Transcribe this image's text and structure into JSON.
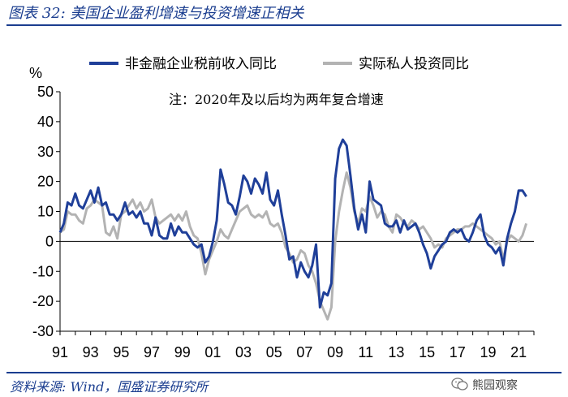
{
  "figure_title": "图表 32: 美国企业盈利增速与投资增速正相关",
  "source": "资料来源: Wind，国盛证券研究所",
  "watermark": "熊园观察",
  "colors": {
    "series1": "#1f3f99",
    "series2": "#b3b3b3",
    "brand": "#1a3d8f"
  },
  "chart_data": {
    "type": "line",
    "y_unit": "%",
    "ylim": [
      -30,
      50
    ],
    "yticks": [
      -30,
      -20,
      -10,
      0,
      10,
      20,
      30,
      40,
      50
    ],
    "xlim": [
      1991,
      2022
    ],
    "xticks": [
      {
        "x": 1991,
        "label": "91"
      },
      {
        "x": 1993,
        "label": "93"
      },
      {
        "x": 1995,
        "label": "95"
      },
      {
        "x": 1997,
        "label": "97"
      },
      {
        "x": 1999,
        "label": "99"
      },
      {
        "x": 2001,
        "label": "01"
      },
      {
        "x": 2003,
        "label": "03"
      },
      {
        "x": 2005,
        "label": "05"
      },
      {
        "x": 2007,
        "label": "07"
      },
      {
        "x": 2009,
        "label": "09"
      },
      {
        "x": 2011,
        "label": "11"
      },
      {
        "x": 2013,
        "label": "13"
      },
      {
        "x": 2015,
        "label": "15"
      },
      {
        "x": 2017,
        "label": "17"
      },
      {
        "x": 2019,
        "label": "19"
      },
      {
        "x": 2021,
        "label": "21"
      }
    ],
    "annotation": "注：2020年及以后均为两年复合增速",
    "legend_position": "top",
    "series": [
      {
        "name": "非金融企业税前收入同比",
        "color": "#1f3f99",
        "points": [
          [
            1991.0,
            3
          ],
          [
            1991.25,
            6
          ],
          [
            1991.5,
            13
          ],
          [
            1991.75,
            12
          ],
          [
            1992.0,
            16
          ],
          [
            1992.25,
            12
          ],
          [
            1992.5,
            11
          ],
          [
            1992.75,
            14
          ],
          [
            1993.0,
            17
          ],
          [
            1993.25,
            13
          ],
          [
            1993.5,
            18
          ],
          [
            1993.75,
            12
          ],
          [
            1994.0,
            13
          ],
          [
            1994.25,
            9
          ],
          [
            1994.5,
            9
          ],
          [
            1994.75,
            7
          ],
          [
            1995.0,
            9
          ],
          [
            1995.25,
            13
          ],
          [
            1995.5,
            9
          ],
          [
            1995.75,
            10
          ],
          [
            1996.0,
            8
          ],
          [
            1996.25,
            10
          ],
          [
            1996.5,
            6
          ],
          [
            1996.75,
            6
          ],
          [
            1997.0,
            2
          ],
          [
            1997.25,
            8
          ],
          [
            1997.5,
            2
          ],
          [
            1997.75,
            1
          ],
          [
            1998.0,
            1
          ],
          [
            1998.25,
            6
          ],
          [
            1998.5,
            2
          ],
          [
            1998.75,
            5
          ],
          [
            1999.0,
            3
          ],
          [
            1999.25,
            3
          ],
          [
            1999.5,
            1
          ],
          [
            1999.75,
            -1
          ],
          [
            2000.0,
            -2
          ],
          [
            2000.25,
            -1
          ],
          [
            2000.5,
            -7
          ],
          [
            2000.75,
            -5
          ],
          [
            2001.0,
            0
          ],
          [
            2001.25,
            7
          ],
          [
            2001.5,
            24
          ],
          [
            2001.75,
            19
          ],
          [
            2002.0,
            13
          ],
          [
            2002.25,
            12
          ],
          [
            2002.5,
            9
          ],
          [
            2002.75,
            15
          ],
          [
            2003.0,
            22
          ],
          [
            2003.25,
            20
          ],
          [
            2003.5,
            16
          ],
          [
            2003.75,
            21
          ],
          [
            2004.0,
            19
          ],
          [
            2004.25,
            16
          ],
          [
            2004.5,
            23
          ],
          [
            2004.75,
            14
          ],
          [
            2005.0,
            12
          ],
          [
            2005.25,
            17
          ],
          [
            2005.5,
            9
          ],
          [
            2005.75,
            2
          ],
          [
            2006.0,
            -6
          ],
          [
            2006.25,
            -5
          ],
          [
            2006.5,
            -12
          ],
          [
            2006.75,
            -7
          ],
          [
            2007.0,
            -10
          ],
          [
            2007.25,
            -12
          ],
          [
            2007.5,
            -8
          ],
          [
            2007.75,
            -1
          ],
          [
            2008.0,
            -22
          ],
          [
            2008.25,
            -17
          ],
          [
            2008.5,
            -18
          ],
          [
            2008.75,
            -14
          ],
          [
            2009.0,
            21
          ],
          [
            2009.25,
            31
          ],
          [
            2009.5,
            34
          ],
          [
            2009.75,
            32
          ],
          [
            2010.0,
            22
          ],
          [
            2010.25,
            11
          ],
          [
            2010.5,
            4
          ],
          [
            2010.75,
            9
          ],
          [
            2011.0,
            3
          ],
          [
            2011.25,
            20
          ],
          [
            2011.5,
            14
          ],
          [
            2011.75,
            13
          ],
          [
            2012.0,
            12
          ],
          [
            2012.25,
            6
          ],
          [
            2012.5,
            5
          ],
          [
            2012.75,
            5
          ],
          [
            2013.0,
            7
          ],
          [
            2013.25,
            3
          ],
          [
            2013.5,
            7
          ],
          [
            2013.75,
            4
          ],
          [
            2014.0,
            5
          ],
          [
            2014.25,
            6
          ],
          [
            2014.5,
            3
          ],
          [
            2014.75,
            -1
          ],
          [
            2015.0,
            -4
          ],
          [
            2015.25,
            -9
          ],
          [
            2015.5,
            -5
          ],
          [
            2015.75,
            -3
          ],
          [
            2016.0,
            -1
          ],
          [
            2016.25,
            0
          ],
          [
            2016.5,
            3
          ],
          [
            2016.75,
            4
          ],
          [
            2017.0,
            3
          ],
          [
            2017.25,
            4
          ],
          [
            2017.5,
            1
          ],
          [
            2017.75,
            0
          ],
          [
            2018.0,
            3
          ],
          [
            2018.25,
            7
          ],
          [
            2018.5,
            9
          ],
          [
            2018.75,
            2
          ],
          [
            2019.0,
            -1
          ],
          [
            2019.25,
            -2
          ],
          [
            2019.5,
            -4
          ],
          [
            2019.75,
            -2
          ],
          [
            2020.0,
            -8
          ],
          [
            2020.25,
            1
          ],
          [
            2020.5,
            6
          ],
          [
            2020.75,
            10
          ],
          [
            2021.0,
            17
          ],
          [
            2021.25,
            17
          ],
          [
            2021.5,
            15
          ]
        ]
      },
      {
        "name": "实际私人投资同比",
        "color": "#b3b3b3",
        "points": [
          [
            1991.0,
            3
          ],
          [
            1991.25,
            4
          ],
          [
            1991.5,
            10
          ],
          [
            1991.75,
            9
          ],
          [
            1992.0,
            9
          ],
          [
            1992.25,
            7
          ],
          [
            1992.5,
            6
          ],
          [
            1992.75,
            11
          ],
          [
            1993.0,
            12
          ],
          [
            1993.25,
            14
          ],
          [
            1993.5,
            13
          ],
          [
            1993.75,
            12
          ],
          [
            1994.0,
            3
          ],
          [
            1994.25,
            2
          ],
          [
            1994.5,
            5
          ],
          [
            1994.75,
            1
          ],
          [
            1995.0,
            9
          ],
          [
            1995.25,
            10
          ],
          [
            1995.5,
            12
          ],
          [
            1995.75,
            14
          ],
          [
            1996.0,
            11
          ],
          [
            1996.25,
            13
          ],
          [
            1996.5,
            10
          ],
          [
            1996.75,
            11
          ],
          [
            1997.0,
            14
          ],
          [
            1997.25,
            8
          ],
          [
            1997.5,
            6
          ],
          [
            1997.75,
            7
          ],
          [
            1998.0,
            8
          ],
          [
            1998.25,
            9
          ],
          [
            1998.5,
            7
          ],
          [
            1998.75,
            9
          ],
          [
            1999.0,
            7
          ],
          [
            1999.25,
            10
          ],
          [
            1999.5,
            5
          ],
          [
            1999.75,
            2
          ],
          [
            2000.0,
            1
          ],
          [
            2000.25,
            -4
          ],
          [
            2000.5,
            -11
          ],
          [
            2000.75,
            -6
          ],
          [
            2001.0,
            -3
          ],
          [
            2001.25,
            0
          ],
          [
            2001.5,
            4
          ],
          [
            2001.75,
            2
          ],
          [
            2002.0,
            1
          ],
          [
            2002.25,
            4
          ],
          [
            2002.5,
            7
          ],
          [
            2002.75,
            10
          ],
          [
            2003.0,
            11
          ],
          [
            2003.25,
            12
          ],
          [
            2003.5,
            9
          ],
          [
            2003.75,
            8
          ],
          [
            2004.0,
            9
          ],
          [
            2004.25,
            8
          ],
          [
            2004.5,
            10
          ],
          [
            2004.75,
            6
          ],
          [
            2005.0,
            5
          ],
          [
            2005.25,
            6
          ],
          [
            2005.5,
            3
          ],
          [
            2005.75,
            -2
          ],
          [
            2006.0,
            -4
          ],
          [
            2006.25,
            -7
          ],
          [
            2006.5,
            -6
          ],
          [
            2006.75,
            -3
          ],
          [
            2007.0,
            -4
          ],
          [
            2007.25,
            -8
          ],
          [
            2007.5,
            -10
          ],
          [
            2007.75,
            -14
          ],
          [
            2008.0,
            -20
          ],
          [
            2008.25,
            -23
          ],
          [
            2008.5,
            -26
          ],
          [
            2008.75,
            -22
          ],
          [
            2009.0,
            0
          ],
          [
            2009.25,
            10
          ],
          [
            2009.5,
            17
          ],
          [
            2009.75,
            23
          ],
          [
            2010.0,
            18
          ],
          [
            2010.25,
            10
          ],
          [
            2010.5,
            6
          ],
          [
            2010.75,
            11
          ],
          [
            2011.0,
            10
          ],
          [
            2011.25,
            15
          ],
          [
            2011.5,
            12
          ],
          [
            2011.75,
            8
          ],
          [
            2012.0,
            10
          ],
          [
            2012.25,
            9
          ],
          [
            2012.5,
            5
          ],
          [
            2012.75,
            3
          ],
          [
            2013.0,
            9
          ],
          [
            2013.25,
            8
          ],
          [
            2013.5,
            6
          ],
          [
            2013.75,
            5
          ],
          [
            2014.0,
            7
          ],
          [
            2014.25,
            6
          ],
          [
            2014.5,
            4
          ],
          [
            2014.75,
            5
          ],
          [
            2015.0,
            3
          ],
          [
            2015.25,
            1
          ],
          [
            2015.5,
            -2
          ],
          [
            2015.75,
            -1
          ],
          [
            2016.0,
            -2
          ],
          [
            2016.25,
            1
          ],
          [
            2016.5,
            2
          ],
          [
            2016.75,
            3
          ],
          [
            2017.0,
            4
          ],
          [
            2017.25,
            4
          ],
          [
            2017.5,
            5
          ],
          [
            2017.75,
            5
          ],
          [
            2018.0,
            6
          ],
          [
            2018.25,
            5
          ],
          [
            2018.5,
            4
          ],
          [
            2018.75,
            3
          ],
          [
            2019.0,
            2
          ],
          [
            2019.25,
            1
          ],
          [
            2019.5,
            -1
          ],
          [
            2019.75,
            0
          ],
          [
            2020.0,
            -6
          ],
          [
            2020.25,
            0
          ],
          [
            2020.5,
            2
          ],
          [
            2020.75,
            1
          ],
          [
            2021.0,
            0
          ],
          [
            2021.25,
            2
          ],
          [
            2021.5,
            6
          ]
        ]
      }
    ]
  }
}
